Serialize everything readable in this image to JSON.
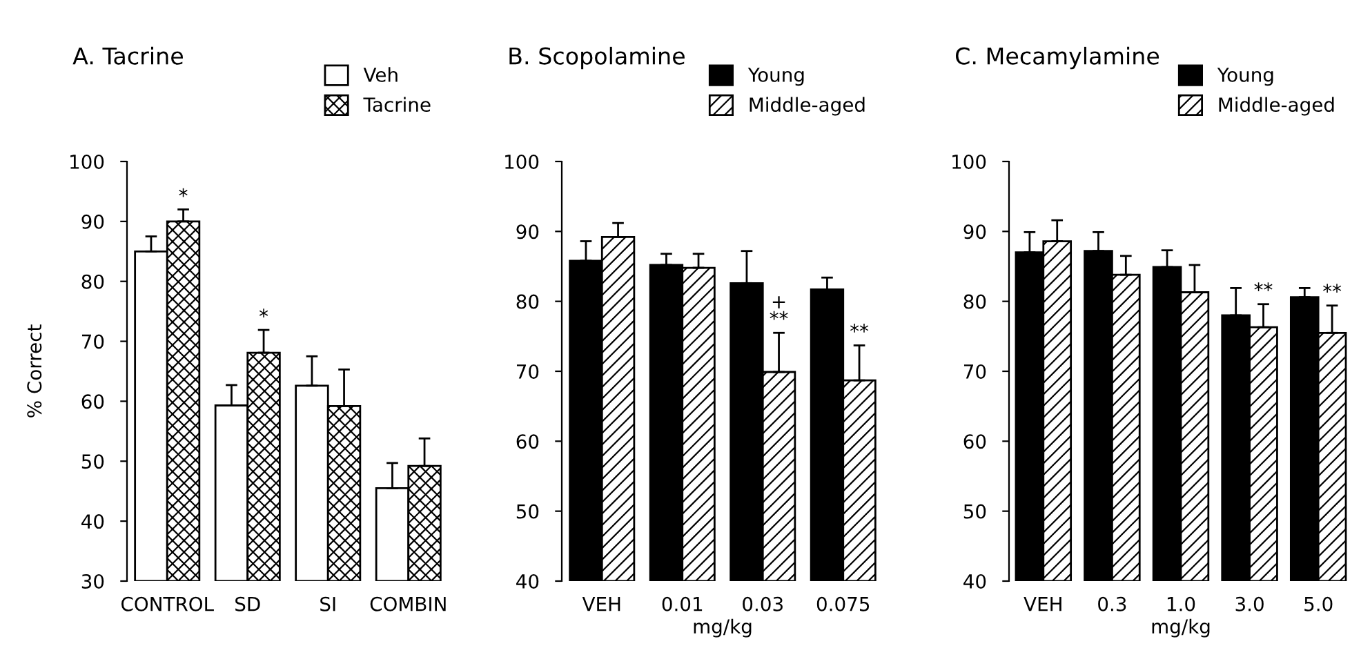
{
  "chart_data": [
    {
      "type": "bar",
      "title": "A. Tacrine",
      "ylabel": "% Correct",
      "categories": [
        "CONTROL",
        "SD",
        "SI",
        "COMBIN"
      ],
      "series": [
        {
          "name": "Veh",
          "color": "#ffffff",
          "values": [
            85,
            59.3,
            62.6,
            45.5
          ],
          "errors": [
            [
              85,
              87.5
            ],
            [
              59.3,
              62.7
            ],
            [
              62.6,
              67.5
            ],
            [
              45.5,
              49.7
            ]
          ]
        },
        {
          "name": "Tacrine",
          "color": "#ffffff",
          "values": [
            90,
            68.1,
            59.2,
            49.2
          ],
          "errors": [
            [
              90,
              92
            ],
            [
              68.1,
              71.9
            ],
            [
              59.2,
              65.3
            ],
            [
              49.2,
              53.8
            ]
          ]
        }
      ],
      "ylim": [
        30,
        100
      ],
      "yticks": [
        30,
        40,
        50,
        60,
        70,
        80,
        90,
        100
      ],
      "grid": false,
      "legend": "top right",
      "annotations": [
        {
          "text": "*",
          "x": "CONTROL",
          "y": 90
        },
        {
          "text": "*",
          "x": "SD",
          "y": 68.1
        }
      ]
    },
    {
      "type": "bar",
      "title": "B. Scopolamine",
      "xlabel": "mg/kg",
      "categories": [
        "VEH",
        "0.01",
        "0.03",
        "0.075"
      ],
      "series": [
        {
          "name": "Young",
          "color": "#000000",
          "values": [
            85.8,
            85.2,
            82.6,
            81.7
          ],
          "errors": [
            [
              85.8,
              88.6
            ],
            [
              85.2,
              86.8
            ],
            [
              82.6,
              87.2
            ],
            [
              81.7,
              83.4
            ]
          ]
        },
        {
          "name": "Middle-aged",
          "color": "#ffffff",
          "values": [
            89.2,
            84.8,
            69.9,
            68.7
          ],
          "errors": [
            [
              89.2,
              91.2
            ],
            [
              84.8,
              86.8
            ],
            [
              69.9,
              75.5
            ],
            [
              68.7,
              73.7
            ]
          ]
        }
      ],
      "ylim": [
        40,
        100
      ],
      "yticks": [
        40,
        50,
        60,
        70,
        80,
        90,
        100
      ],
      "grid": false,
      "legend": "top right",
      "annotations": [
        {
          "text": "+\n**",
          "x": "0.03",
          "y": 69.9
        },
        {
          "text": "**",
          "x": "0.075",
          "y": 68.7
        }
      ]
    },
    {
      "type": "bar",
      "title": "C. Mecamylamine",
      "xlabel": "mg/kg",
      "categories": [
        "VEH",
        "0.3",
        "1.0",
        "3.0",
        "5.0"
      ],
      "series": [
        {
          "name": "Young",
          "color": "#000000",
          "values": [
            87,
            87.2,
            84.9,
            78,
            80.6
          ],
          "errors": [
            [
              87,
              89.9
            ],
            [
              87.2,
              89.9
            ],
            [
              84.9,
              87.3
            ],
            [
              78,
              81.9
            ],
            [
              80.6,
              81.9
            ]
          ]
        },
        {
          "name": "Middle-aged",
          "color": "#ffffff",
          "values": [
            88.6,
            83.8,
            81.3,
            76.3,
            75.5
          ],
          "errors": [
            [
              88.6,
              91.6
            ],
            [
              83.8,
              86.5
            ],
            [
              81.3,
              85.2
            ],
            [
              76.3,
              79.6
            ],
            [
              75.5,
              79.4
            ]
          ]
        }
      ],
      "ylim": [
        40,
        100
      ],
      "yticks": [
        40,
        50,
        60,
        70,
        80,
        90,
        100
      ],
      "grid": false,
      "legend": "top right",
      "annotations": [
        {
          "text": "**",
          "x": "3.0",
          "y": 76.3
        },
        {
          "text": "**",
          "x": "5.0",
          "y": 75.5
        }
      ]
    }
  ]
}
